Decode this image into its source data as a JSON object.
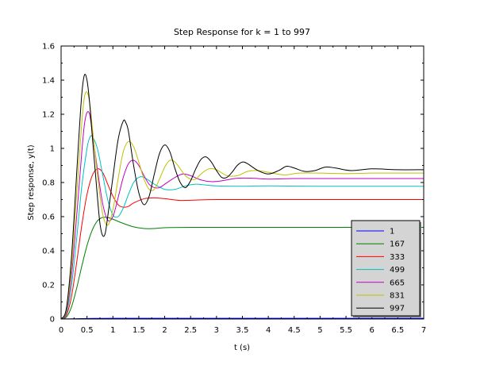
{
  "chart_data": {
    "type": "line",
    "title": "Step Response for k = 1 to 997",
    "xlabel": "t (s)",
    "ylabel": "Step response, y(t)",
    "xlim": [
      0,
      7
    ],
    "ylim": [
      0,
      1.6
    ],
    "xticks": [
      "0",
      "0.5",
      "1",
      "1.5",
      "2",
      "2.5",
      "3",
      "3.5",
      "4",
      "4.5",
      "5",
      "5.5",
      "6",
      "6.5",
      "7"
    ],
    "yticks": [
      "0",
      "0.2",
      "0.4",
      "0.6",
      "0.8",
      "1",
      "1.2",
      "1.4",
      "1.6"
    ],
    "grid": false,
    "legend_position": "bottom-right",
    "series": [
      {
        "name": "1",
        "color": "#0000ff",
        "points": [
          [
            0,
            0
          ],
          [
            0.5,
            0.003
          ],
          [
            1,
            0.004
          ],
          [
            2,
            0.004
          ],
          [
            3,
            0.004
          ],
          [
            4,
            0.004
          ],
          [
            5,
            0.004
          ],
          [
            6,
            0.004
          ],
          [
            7,
            0.004
          ]
        ]
      },
      {
        "name": "167",
        "color": "#008000",
        "points": [
          [
            0,
            0
          ],
          [
            0.1,
            0.01
          ],
          [
            0.2,
            0.07
          ],
          [
            0.3,
            0.18
          ],
          [
            0.4,
            0.31
          ],
          [
            0.5,
            0.43
          ],
          [
            0.6,
            0.52
          ],
          [
            0.7,
            0.575
          ],
          [
            0.8,
            0.595
          ],
          [
            0.9,
            0.595
          ],
          [
            1.0,
            0.585
          ],
          [
            1.2,
            0.56
          ],
          [
            1.4,
            0.54
          ],
          [
            1.6,
            0.53
          ],
          [
            1.8,
            0.53
          ],
          [
            2.0,
            0.535
          ],
          [
            2.5,
            0.537
          ],
          [
            3,
            0.537
          ],
          [
            4,
            0.537
          ],
          [
            5,
            0.537
          ],
          [
            6,
            0.537
          ],
          [
            7,
            0.537
          ]
        ]
      },
      {
        "name": "333",
        "color": "#ff0000",
        "points": [
          [
            0,
            0
          ],
          [
            0.1,
            0.02
          ],
          [
            0.2,
            0.13
          ],
          [
            0.3,
            0.33
          ],
          [
            0.4,
            0.55
          ],
          [
            0.5,
            0.73
          ],
          [
            0.6,
            0.84
          ],
          [
            0.7,
            0.88
          ],
          [
            0.8,
            0.86
          ],
          [
            0.9,
            0.79
          ],
          [
            1.0,
            0.72
          ],
          [
            1.1,
            0.67
          ],
          [
            1.2,
            0.655
          ],
          [
            1.3,
            0.66
          ],
          [
            1.4,
            0.68
          ],
          [
            1.6,
            0.705
          ],
          [
            1.8,
            0.71
          ],
          [
            2.0,
            0.705
          ],
          [
            2.3,
            0.695
          ],
          [
            2.6,
            0.697
          ],
          [
            3,
            0.7
          ],
          [
            4,
            0.7
          ],
          [
            5,
            0.7
          ],
          [
            6,
            0.7
          ],
          [
            7,
            0.7
          ]
        ]
      },
      {
        "name": "499",
        "color": "#00c0c0",
        "points": [
          [
            0,
            0
          ],
          [
            0.1,
            0.03
          ],
          [
            0.2,
            0.19
          ],
          [
            0.3,
            0.47
          ],
          [
            0.4,
            0.78
          ],
          [
            0.5,
            1.0
          ],
          [
            0.55,
            1.06
          ],
          [
            0.6,
            1.07
          ],
          [
            0.7,
            1.0
          ],
          [
            0.8,
            0.85
          ],
          [
            0.9,
            0.7
          ],
          [
            1.0,
            0.61
          ],
          [
            1.1,
            0.6
          ],
          [
            1.2,
            0.65
          ],
          [
            1.3,
            0.73
          ],
          [
            1.4,
            0.8
          ],
          [
            1.5,
            0.83
          ],
          [
            1.6,
            0.83
          ],
          [
            1.8,
            0.79
          ],
          [
            2.0,
            0.76
          ],
          [
            2.2,
            0.76
          ],
          [
            2.4,
            0.78
          ],
          [
            2.6,
            0.79
          ],
          [
            2.8,
            0.785
          ],
          [
            3,
            0.78
          ],
          [
            3.5,
            0.778
          ],
          [
            4,
            0.78
          ],
          [
            5,
            0.778
          ],
          [
            6,
            0.778
          ],
          [
            7,
            0.778
          ]
        ]
      },
      {
        "name": "665",
        "color": "#c000c0",
        "points": [
          [
            0,
            0
          ],
          [
            0.1,
            0.04
          ],
          [
            0.2,
            0.25
          ],
          [
            0.3,
            0.6
          ],
          [
            0.4,
            0.98
          ],
          [
            0.45,
            1.14
          ],
          [
            0.5,
            1.21
          ],
          [
            0.55,
            1.2
          ],
          [
            0.6,
            1.1
          ],
          [
            0.7,
            0.88
          ],
          [
            0.8,
            0.68
          ],
          [
            0.9,
            0.58
          ],
          [
            1.0,
            0.6
          ],
          [
            1.1,
            0.71
          ],
          [
            1.2,
            0.83
          ],
          [
            1.3,
            0.91
          ],
          [
            1.4,
            0.93
          ],
          [
            1.5,
            0.9
          ],
          [
            1.6,
            0.84
          ],
          [
            1.7,
            0.79
          ],
          [
            1.8,
            0.77
          ],
          [
            1.9,
            0.77
          ],
          [
            2.0,
            0.79
          ],
          [
            2.2,
            0.83
          ],
          [
            2.35,
            0.85
          ],
          [
            2.5,
            0.84
          ],
          [
            2.7,
            0.815
          ],
          [
            2.9,
            0.805
          ],
          [
            3.1,
            0.81
          ],
          [
            3.4,
            0.825
          ],
          [
            3.7,
            0.825
          ],
          [
            4,
            0.82
          ],
          [
            4.5,
            0.823
          ],
          [
            5,
            0.823
          ],
          [
            6,
            0.823
          ],
          [
            7,
            0.823
          ]
        ]
      },
      {
        "name": "831",
        "color": "#c0c000",
        "points": [
          [
            0,
            0
          ],
          [
            0.1,
            0.05
          ],
          [
            0.2,
            0.3
          ],
          [
            0.3,
            0.73
          ],
          [
            0.4,
            1.15
          ],
          [
            0.45,
            1.3
          ],
          [
            0.5,
            1.33
          ],
          [
            0.55,
            1.27
          ],
          [
            0.6,
            1.13
          ],
          [
            0.7,
            0.85
          ],
          [
            0.8,
            0.62
          ],
          [
            0.9,
            0.55
          ],
          [
            1.0,
            0.64
          ],
          [
            1.1,
            0.82
          ],
          [
            1.2,
            0.98
          ],
          [
            1.3,
            1.04
          ],
          [
            1.4,
            1.01
          ],
          [
            1.5,
            0.92
          ],
          [
            1.6,
            0.82
          ],
          [
            1.7,
            0.76
          ],
          [
            1.8,
            0.76
          ],
          [
            1.9,
            0.82
          ],
          [
            2.0,
            0.89
          ],
          [
            2.1,
            0.93
          ],
          [
            2.2,
            0.92
          ],
          [
            2.3,
            0.88
          ],
          [
            2.4,
            0.84
          ],
          [
            2.5,
            0.82
          ],
          [
            2.6,
            0.82
          ],
          [
            2.7,
            0.85
          ],
          [
            2.85,
            0.88
          ],
          [
            3.0,
            0.875
          ],
          [
            3.2,
            0.84
          ],
          [
            3.4,
            0.84
          ],
          [
            3.6,
            0.865
          ],
          [
            3.8,
            0.87
          ],
          [
            4.0,
            0.86
          ],
          [
            4.3,
            0.845
          ],
          [
            4.6,
            0.855
          ],
          [
            5,
            0.855
          ],
          [
            5.5,
            0.852
          ],
          [
            6,
            0.855
          ],
          [
            6.5,
            0.855
          ],
          [
            7,
            0.855
          ]
        ]
      },
      {
        "name": "997",
        "color": "#000000",
        "points": [
          [
            0,
            0
          ],
          [
            0.1,
            0.06
          ],
          [
            0.2,
            0.36
          ],
          [
            0.3,
            0.85
          ],
          [
            0.35,
            1.1
          ],
          [
            0.4,
            1.32
          ],
          [
            0.45,
            1.43
          ],
          [
            0.5,
            1.4
          ],
          [
            0.55,
            1.27
          ],
          [
            0.6,
            1.08
          ],
          [
            0.7,
            0.72
          ],
          [
            0.75,
            0.56
          ],
          [
            0.8,
            0.49
          ],
          [
            0.85,
            0.5
          ],
          [
            0.9,
            0.6
          ],
          [
            1.0,
            0.83
          ],
          [
            1.1,
            1.05
          ],
          [
            1.2,
            1.16
          ],
          [
            1.25,
            1.15
          ],
          [
            1.3,
            1.1
          ],
          [
            1.4,
            0.9
          ],
          [
            1.5,
            0.74
          ],
          [
            1.6,
            0.67
          ],
          [
            1.7,
            0.72
          ],
          [
            1.8,
            0.85
          ],
          [
            1.9,
            0.97
          ],
          [
            2.0,
            1.02
          ],
          [
            2.1,
            0.98
          ],
          [
            2.2,
            0.88
          ],
          [
            2.3,
            0.8
          ],
          [
            2.4,
            0.77
          ],
          [
            2.5,
            0.81
          ],
          [
            2.6,
            0.88
          ],
          [
            2.7,
            0.935
          ],
          [
            2.8,
            0.95
          ],
          [
            2.9,
            0.92
          ],
          [
            3.0,
            0.87
          ],
          [
            3.1,
            0.83
          ],
          [
            3.2,
            0.83
          ],
          [
            3.3,
            0.86
          ],
          [
            3.4,
            0.9
          ],
          [
            3.5,
            0.92
          ],
          [
            3.6,
            0.91
          ],
          [
            3.8,
            0.87
          ],
          [
            4.0,
            0.85
          ],
          [
            4.2,
            0.87
          ],
          [
            4.35,
            0.895
          ],
          [
            4.5,
            0.885
          ],
          [
            4.7,
            0.865
          ],
          [
            4.9,
            0.87
          ],
          [
            5.1,
            0.89
          ],
          [
            5.3,
            0.885
          ],
          [
            5.6,
            0.87
          ],
          [
            6,
            0.88
          ],
          [
            6.5,
            0.875
          ],
          [
            7,
            0.875
          ]
        ]
      }
    ]
  }
}
